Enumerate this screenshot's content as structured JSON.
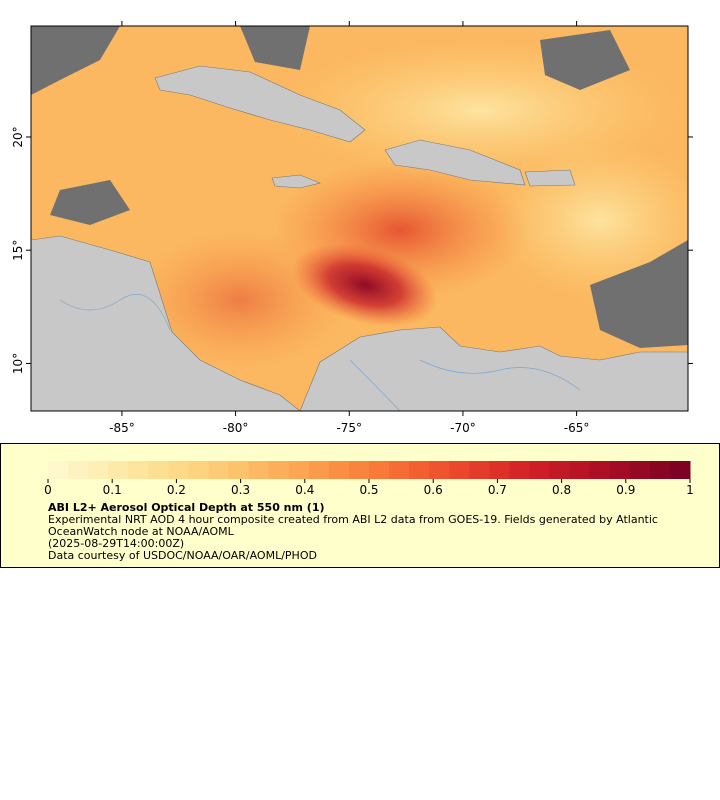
{
  "map": {
    "lonlim": [
      -89,
      -60.1
    ],
    "latlim": [
      7.9,
      24.9
    ],
    "lon_ticks": [
      {
        "value": -85,
        "label": "-85°"
      },
      {
        "value": -80,
        "label": "-80°"
      },
      {
        "value": -75,
        "label": "-75°"
      },
      {
        "value": -70,
        "label": "-70°"
      },
      {
        "value": -65,
        "label": "-65°"
      }
    ],
    "lat_ticks": [
      {
        "value": 10,
        "label": "10°"
      },
      {
        "value": 15,
        "label": "15°"
      },
      {
        "value": 20,
        "label": "20°"
      }
    ]
  },
  "legend": {
    "colorbar": {
      "range": [
        0,
        1
      ],
      "ticks": [
        0,
        0.1,
        0.2,
        0.3,
        0.4,
        0.5,
        0.6,
        0.7,
        0.8,
        0.9,
        1
      ],
      "colors": [
        "#fffad2",
        "#fde8a2",
        "#fdd07a",
        "#fcaa55",
        "#f97f3a",
        "#ee4e2c",
        "#d21f26",
        "#a80e25",
        "#770023"
      ]
    },
    "title": "ABI L2+ Aerosol Optical Depth at 550 nm (1)",
    "description": "Experimental NRT AOD 4 hour composite created from ABI L2 data from GOES-19. Fields generated by Atlantic OceanWatch node at NOAA/AOML",
    "time": "(2025-08-29T14:00:00Z)",
    "credit": "Data courtesy of USDOC/NOAA/OAR/AOML/PHOD"
  }
}
